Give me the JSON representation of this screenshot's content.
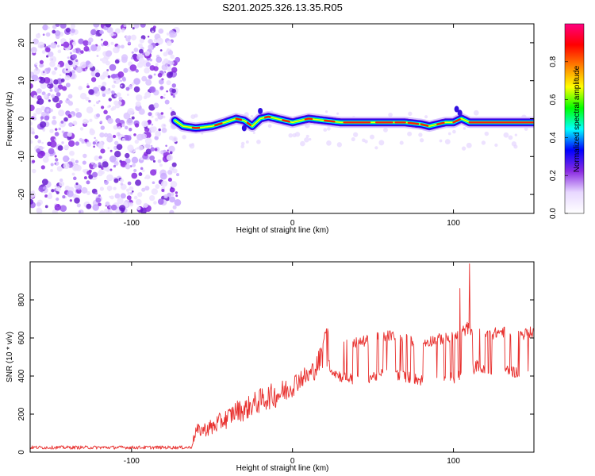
{
  "chart_data": [
    {
      "type": "heatmap",
      "title": "S201.2025.326.13.35.R05",
      "xlabel": "Height of straight line (km)",
      "ylabel": "Frequency (Hz)",
      "xlim": [
        -163,
        150
      ],
      "ylim": [
        -25,
        25
      ],
      "x_ticks": [
        -100,
        0,
        100
      ],
      "x_tick_labels": [
        "-100",
        "0",
        "100"
      ],
      "y_ticks": [
        -20,
        -10,
        0,
        10,
        20
      ],
      "y_tick_labels": [
        "-20",
        "-10",
        "0",
        "10",
        "20"
      ],
      "noise_region_x": [
        -163,
        -73
      ],
      "line_trace": {
        "x": [
          -73,
          -68,
          -60,
          -50,
          -42,
          -35,
          -30,
          -25,
          -20,
          -15,
          -10,
          -5,
          0,
          10,
          20,
          30,
          40,
          50,
          60,
          70,
          80,
          85,
          90,
          95,
          100,
          105,
          110,
          120,
          130,
          140,
          150
        ],
        "freq": [
          -0.5,
          -2,
          -2.5,
          -2,
          -1,
          0,
          -0.5,
          -2,
          0,
          0.5,
          0,
          -0.5,
          -1,
          0,
          -0.5,
          -1,
          -1,
          -1,
          -1,
          -1,
          -1.5,
          -2,
          -1.5,
          -1,
          -1,
          0,
          -1,
          -1,
          -1,
          -1,
          -1
        ]
      },
      "colorbar": {
        "label": "Normalized spectral amplitude",
        "ticks": [
          0.0,
          0.2,
          0.4,
          0.6,
          0.8
        ],
        "tick_labels": [
          "0.0",
          "0.2",
          "0.4",
          "0.6",
          "0.8"
        ],
        "colors": [
          "#ffffff",
          "#e8d8ff",
          "#8a2be2",
          "#0000ff",
          "#00ffff",
          "#00ff00",
          "#ffff00",
          "#ff8000",
          "#ff0000",
          "#ff0080"
        ]
      }
    },
    {
      "type": "line",
      "xlabel": "Height of straight line (km)",
      "ylabel": "SNR (10 * v/v)",
      "xlim": [
        -163,
        150
      ],
      "ylim": [
        0,
        1000
      ],
      "x_ticks": [
        -100,
        0,
        100
      ],
      "x_tick_labels": [
        "-100",
        "0",
        "100"
      ],
      "y_ticks": [
        0,
        200,
        400,
        600,
        800
      ],
      "y_tick_labels": [
        "0",
        "200",
        "400",
        "600",
        "800"
      ],
      "color": "#e8302e",
      "series": [
        {
          "name": "SNR",
          "x": [
            -163,
            -140,
            -120,
            -100,
            -80,
            -70,
            -63,
            -60,
            -55,
            -50,
            -45,
            -40,
            -35,
            -30,
            -25,
            -20,
            -15,
            -10,
            -5,
            0,
            5,
            10,
            15,
            18,
            20,
            22,
            25,
            30,
            40,
            50,
            60,
            70,
            80,
            90,
            100,
            105,
            108,
            110,
            115,
            120,
            130,
            140,
            150
          ],
          "mean": [
            25,
            25,
            25,
            25,
            25,
            25,
            25,
            110,
            120,
            130,
            160,
            180,
            220,
            220,
            250,
            270,
            290,
            300,
            320,
            350,
            390,
            400,
            450,
            500,
            560,
            560,
            520,
            500,
            480,
            500,
            520,
            500,
            480,
            500,
            500,
            520,
            540,
            540,
            560,
            520,
            540,
            520,
            540
          ],
          "spread": [
            15,
            15,
            15,
            15,
            15,
            15,
            15,
            60,
            60,
            80,
            80,
            90,
            90,
            100,
            100,
            110,
            110,
            110,
            110,
            100,
            90,
            90,
            100,
            130,
            150,
            150,
            160,
            170,
            170,
            170,
            170,
            170,
            170,
            170,
            180,
            190,
            200,
            200,
            170,
            170,
            170,
            170,
            170
          ],
          "spikes": [
            {
              "x": 104,
              "y": 860
            },
            {
              "x": 110,
              "y": 990
            }
          ]
        }
      ]
    }
  ]
}
